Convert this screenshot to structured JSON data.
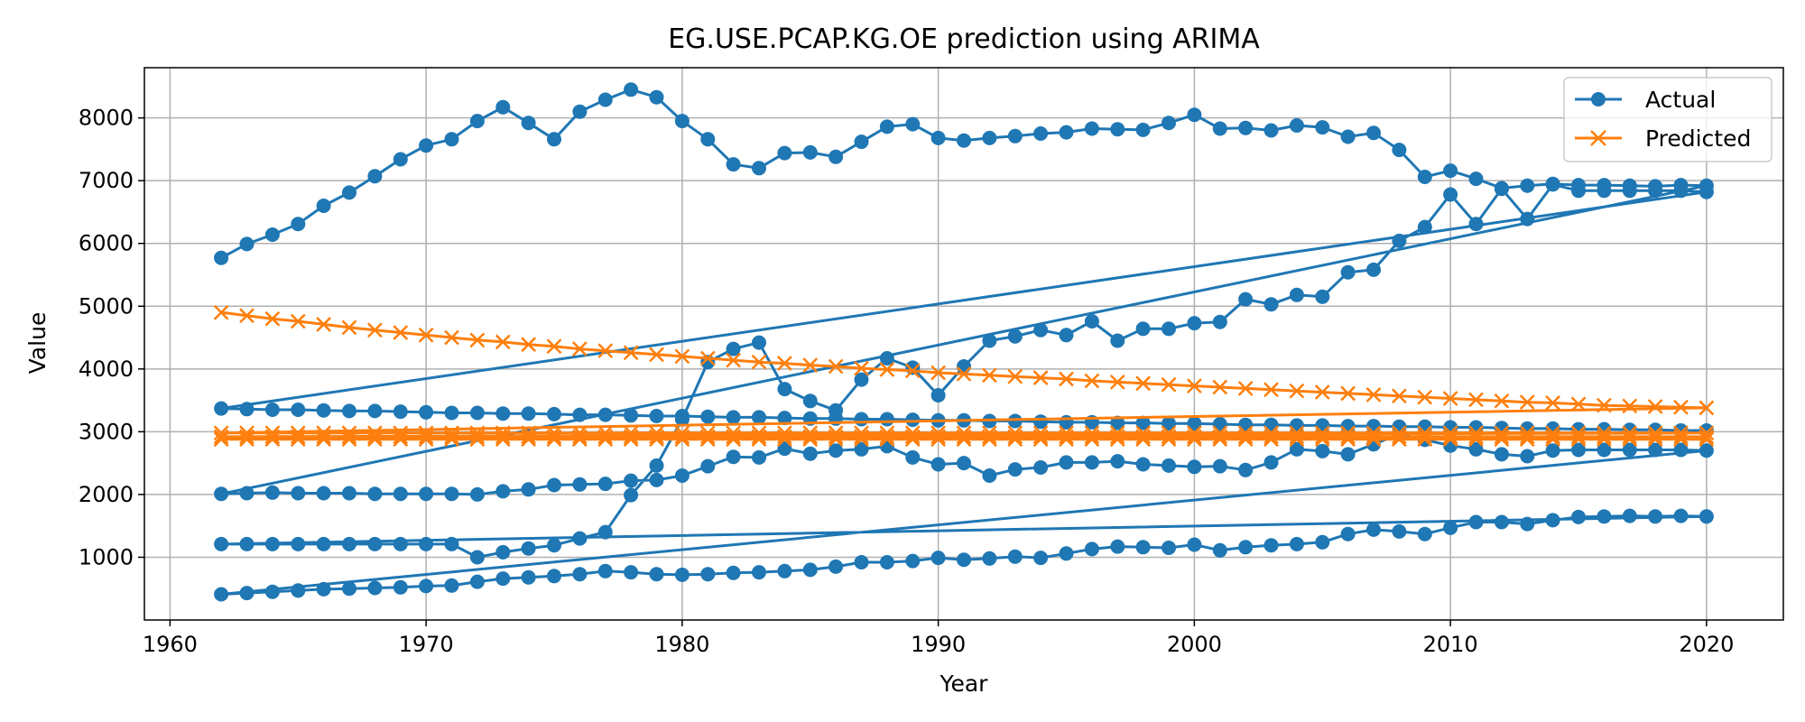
{
  "chart_data": {
    "type": "line",
    "title": "EG.USE.PCAP.KG.OE prediction using ARIMA",
    "xlabel": "Year",
    "ylabel": "Value",
    "xlim": [
      1959,
      2023
    ],
    "ylim": [
      0,
      8800
    ],
    "xticks": [
      1960,
      1970,
      1980,
      1990,
      2000,
      2010,
      2020
    ],
    "yticks": [
      1000,
      2000,
      3000,
      4000,
      5000,
      6000,
      7000,
      8000
    ],
    "grid": true,
    "legend_position": "top-right",
    "series": [
      {
        "name": "Actual",
        "color": "#1f77b4",
        "marker": "circle",
        "x": [
          1962,
          1963,
          1964,
          1965,
          1966,
          1967,
          1968,
          1969,
          1970,
          1971,
          1972,
          1973,
          1974,
          1975,
          1976,
          1977,
          1978,
          1979,
          1980,
          1981,
          1982,
          1983,
          1984,
          1985,
          1986,
          1987,
          1988,
          1989,
          1990,
          1991,
          1992,
          1993,
          1994,
          1995,
          1996,
          1997,
          1998,
          1999,
          2000,
          2001,
          2002,
          2003,
          2004,
          2005,
          2006,
          2007,
          2008,
          2009,
          2010,
          2011,
          2012,
          2013,
          2014,
          2015,
          2016,
          2017,
          2018,
          2019,
          2020,
          1962,
          1963,
          1964,
          1965,
          1966,
          1967,
          1968,
          1969,
          1970,
          1971,
          1972,
          1973,
          1974,
          1975,
          1976,
          1977,
          1978,
          1979,
          1980,
          1981,
          1982,
          1983,
          1984,
          1985,
          1986,
          1987,
          1988,
          1989,
          1990,
          1991,
          1992,
          1993,
          1994,
          1995,
          1996,
          1997,
          1998,
          1999,
          2000,
          2001,
          2002,
          2003,
          2004,
          2005,
          2006,
          2007,
          2008,
          2009,
          2010,
          2011,
          2012,
          2013,
          2014,
          2015,
          2016,
          2017,
          2018,
          2019,
          2020,
          1962,
          1963,
          1964,
          1965,
          1966,
          1967,
          1968,
          1969,
          1970,
          1971,
          1972,
          1973,
          1974,
          1975,
          1976,
          1977,
          1978,
          1979,
          1980,
          1981,
          1982,
          1983,
          1984,
          1985,
          1986,
          1987,
          1988,
          1989,
          1990,
          1991,
          1992,
          1993,
          1994,
          1995,
          1996,
          1997,
          1998,
          1999,
          2000,
          2001,
          2002,
          2003,
          2004,
          2005,
          2006,
          2007,
          2008,
          2009,
          2010,
          2011,
          2012,
          2013,
          2014,
          2015,
          2016,
          2017,
          2018,
          2019,
          2020,
          1962,
          1963,
          1964,
          1965,
          1966,
          1967,
          1968,
          1969,
          1970,
          1971,
          1972,
          1973,
          1974,
          1975,
          1976,
          1977,
          1978,
          1979,
          1980,
          1981,
          1982,
          1983,
          1984,
          1985,
          1986,
          1987,
          1988,
          1989,
          1990,
          1991,
          1992,
          1993,
          1994,
          1995,
          1996,
          1997,
          1998,
          1999,
          2000,
          2001,
          2002,
          2003,
          2004,
          2005,
          2006,
          2007,
          2008,
          2009,
          2010,
          2011,
          2012,
          2013,
          2014,
          2015,
          2016,
          2017,
          2018,
          2019,
          2020,
          1962,
          1963,
          1964,
          1965,
          1966,
          1967,
          1968,
          1969,
          1970,
          1971,
          1972,
          1973,
          1974,
          1975,
          1976,
          1977,
          1978,
          1979,
          1980,
          1981,
          1982,
          1983,
          1984,
          1985,
          1986,
          1987,
          1988,
          1989,
          1990,
          1991,
          1992,
          1993,
          1994,
          1995,
          1996,
          1997,
          1998,
          1999,
          2000,
          2001,
          2002,
          2003,
          2004,
          2005,
          2006,
          2007,
          2008,
          2009,
          2010,
          2011,
          2012,
          2013,
          2014,
          2015,
          2016,
          2017,
          2018,
          2019,
          2020
        ],
        "y": [
          5770,
          5990,
          6140,
          6310,
          6600,
          6810,
          7070,
          7340,
          7560,
          7660,
          7950,
          8170,
          7920,
          7660,
          8100,
          8290,
          8450,
          8330,
          7950,
          7660,
          7260,
          7200,
          7440,
          7450,
          7380,
          7620,
          7860,
          7900,
          7680,
          7640,
          7680,
          7710,
          7750,
          7770,
          7830,
          7820,
          7810,
          7920,
          8050,
          7830,
          7840,
          7800,
          7880,
          7850,
          7700,
          7760,
          7490,
          7060,
          7160,
          7030,
          6880,
          6920,
          6950,
          6930,
          6930,
          6920,
          6910,
          6930,
          6920,
          2010,
          2020,
          2030,
          2020,
          2020,
          2020,
          2010,
          2010,
          2010,
          2010,
          2000,
          2050,
          2080,
          2150,
          2160,
          2170,
          2220,
          2230,
          2300,
          2450,
          2600,
          2590,
          2730,
          2650,
          2700,
          2720,
          2770,
          2590,
          2480,
          2500,
          2300,
          2400,
          2430,
          2510,
          2510,
          2530,
          2480,
          2460,
          2440,
          2450,
          2390,
          2510,
          2720,
          2690,
          2640,
          2800,
          2960,
          2870,
          2780,
          2720,
          2640,
          2610,
          2700,
          2710,
          2710,
          2710,
          2710,
          2710,
          2700,
          410,
          430,
          450,
          470,
          490,
          500,
          510,
          520,
          540,
          550,
          610,
          660,
          680,
          700,
          730,
          780,
          760,
          730,
          720,
          730,
          750,
          760,
          780,
          800,
          850,
          920,
          920,
          940,
          990,
          960,
          980,
          1010,
          990,
          1060,
          1130,
          1170,
          1160,
          1150,
          1200,
          1110,
          1160,
          1190,
          1210,
          1240,
          1370,
          1440,
          1410,
          1370,
          1470,
          1560,
          1560,
          1530,
          1590,
          1640,
          1650,
          1660,
          1650,
          1660,
          1650,
          1210,
          1210,
          1210,
          1210,
          1210,
          1210,
          1210,
          1210,
          1210,
          1210,
          1000,
          1080,
          1140,
          1190,
          1300,
          1400,
          1990,
          2460,
          3200,
          4110,
          4320,
          4420,
          3680,
          3490,
          3340,
          3830,
          4170,
          4020,
          3580,
          4040,
          4450,
          4520,
          4620,
          4540,
          4760,
          4450,
          4640,
          4640,
          4730,
          4750,
          5110,
          5030,
          5180,
          5150,
          5540,
          5580,
          6040,
          6260,
          6780,
          6310,
          6870,
          6390,
          6940,
          6840,
          6840,
          6840,
          6840,
          6840,
          6820,
          3370,
          3360,
          3350,
          3350,
          3340,
          3330,
          3330,
          3320,
          3310,
          3300,
          3300,
          3290,
          3290,
          3280,
          3270,
          3270,
          3260,
          3250,
          3250,
          3240,
          3230,
          3230,
          3220,
          3210,
          3210,
          3200,
          3200,
          3190,
          3180,
          3180,
          3170,
          3170,
          3160,
          3150,
          3150,
          3140,
          3140,
          3130,
          3130,
          3120,
          3110,
          3110,
          3100,
          3100,
          3090,
          3090,
          3080,
          3080,
          3070,
          3070,
          3060,
          3050,
          3050,
          3040,
          3040,
          3030,
          3030,
          3020,
          3020
        ]
      },
      {
        "name": "Predicted",
        "color": "#ff7f0e",
        "marker": "x",
        "x": [
          1962,
          1963,
          1964,
          1965,
          1966,
          1967,
          1968,
          1969,
          1970,
          1971,
          1972,
          1973,
          1974,
          1975,
          1976,
          1977,
          1978,
          1979,
          1980,
          1981,
          1982,
          1983,
          1984,
          1985,
          1986,
          1987,
          1988,
          1989,
          1990,
          1991,
          1992,
          1993,
          1994,
          1995,
          1996,
          1997,
          1998,
          1999,
          2000,
          2001,
          2002,
          2003,
          2004,
          2005,
          2006,
          2007,
          2008,
          2009,
          2010,
          2011,
          2012,
          2013,
          2014,
          2015,
          2016,
          2017,
          2018,
          2019,
          2020,
          1962,
          1963,
          1964,
          1965,
          1966,
          1967,
          1968,
          1969,
          1970,
          1971,
          1972,
          1973,
          1974,
          1975,
          1976,
          1977,
          1978,
          1979,
          1980,
          1981,
          1982,
          1983,
          1984,
          1985,
          1986,
          1987,
          1988,
          1989,
          1990,
          1991,
          1992,
          1993,
          1994,
          1995,
          1996,
          1997,
          1998,
          1999,
          2000,
          2001,
          2002,
          2003,
          2004,
          2005,
          2006,
          2007,
          2008,
          2009,
          2010,
          2011,
          2012,
          2013,
          2014,
          2015,
          2016,
          2017,
          2018,
          2019,
          2020,
          1962,
          1963,
          1964,
          1965,
          1966,
          1967,
          1968,
          1969,
          1970,
          1971,
          1972,
          1973,
          1974,
          1975,
          1976,
          1977,
          1978,
          1979,
          1980,
          1981,
          1982,
          1983,
          1984,
          1985,
          1986,
          1987,
          1988,
          1989,
          1990,
          1991,
          1992,
          1993,
          1994,
          1995,
          1996,
          1997,
          1998,
          1999,
          2000,
          2001,
          2002,
          2003,
          2004,
          2005,
          2006,
          2007,
          2008,
          2009,
          2010,
          2011,
          2012,
          2013,
          2014,
          2015,
          2016,
          2017,
          2018,
          2019,
          2020,
          1962,
          1963,
          1964,
          1965,
          1966,
          1967,
          1968,
          1969,
          1970,
          1971,
          1972,
          1973,
          1974,
          1975,
          1976,
          1977,
          1978,
          1979,
          1980,
          1981,
          1982,
          1983,
          1984,
          1985,
          1986,
          1987,
          1988,
          1989,
          1990,
          1991,
          1992,
          1993,
          1994,
          1995,
          1996,
          1997,
          1998,
          1999,
          2000,
          2001,
          2002,
          2003,
          2004,
          2005,
          2006,
          2007,
          2008,
          2009,
          2010,
          2011,
          2012,
          2013,
          2014,
          2015,
          2016,
          2017,
          2018,
          2019,
          2020
        ],
        "y": [
          4900,
          4850,
          4800,
          4760,
          4710,
          4660,
          4620,
          4580,
          4540,
          4500,
          4460,
          4430,
          4390,
          4360,
          4320,
          4290,
          4260,
          4230,
          4200,
          4170,
          4140,
          4110,
          4090,
          4060,
          4040,
          4010,
          3990,
          3970,
          3940,
          3920,
          3900,
          3880,
          3860,
          3840,
          3810,
          3790,
          3770,
          3750,
          3730,
          3710,
          3690,
          3670,
          3650,
          3630,
          3610,
          3590,
          3570,
          3550,
          3530,
          3510,
          3490,
          3470,
          3460,
          3440,
          3420,
          3410,
          3400,
          3390,
          3380,
          2980,
          2980,
          2980,
          2980,
          2980,
          2980,
          2980,
          2980,
          2980,
          2980,
          2980,
          2980,
          2980,
          2980,
          2980,
          2980,
          2980,
          2980,
          2980,
          2980,
          2980,
          2980,
          2980,
          2980,
          2980,
          2980,
          2980,
          2980,
          2980,
          2980,
          2980,
          2980,
          2980,
          2980,
          2980,
          2980,
          2980,
          2980,
          2980,
          2980,
          2980,
          2980,
          2980,
          2980,
          2980,
          2980,
          2980,
          2980,
          2980,
          2980,
          2980,
          2980,
          2980,
          2980,
          2980,
          2980,
          2980,
          2980,
          2980,
          2920,
          2920,
          2920,
          2920,
          2920,
          2920,
          2920,
          2920,
          2920,
          2920,
          2920,
          2920,
          2920,
          2920,
          2920,
          2920,
          2920,
          2920,
          2920,
          2920,
          2920,
          2920,
          2920,
          2920,
          2920,
          2920,
          2920,
          2920,
          2920,
          2920,
          2920,
          2920,
          2920,
          2920,
          2920,
          2920,
          2920,
          2920,
          2920,
          2920,
          2920,
          2920,
          2920,
          2920,
          2920,
          2920,
          2920,
          2920,
          2920,
          2920,
          2920,
          2920,
          2920,
          2920,
          2920,
          2920,
          2920,
          2920,
          2920,
          2880,
          2880,
          2880,
          2880,
          2880,
          2880,
          2880,
          2880,
          2880,
          2880,
          2880,
          2880,
          2880,
          2880,
          2880,
          2880,
          2880,
          2880,
          2880,
          2880,
          2880,
          2880,
          2880,
          2880,
          2880,
          2880,
          2880,
          2880,
          2880,
          2880,
          2880,
          2880,
          2880,
          2880,
          2880,
          2880,
          2880,
          2880,
          2880,
          2880,
          2880,
          2880,
          2880,
          2880,
          2880,
          2880,
          2880,
          2880,
          2880,
          2880,
          2880,
          2880,
          2880,
          2880,
          2880,
          2880,
          2880,
          2880,
          2880
        ]
      }
    ]
  }
}
